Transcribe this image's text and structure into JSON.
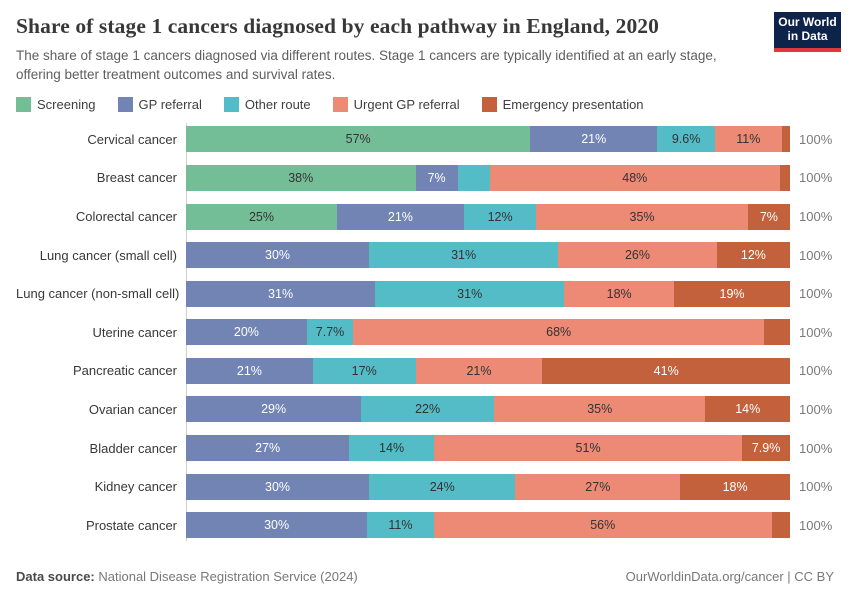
{
  "header": {
    "title": "Share of stage 1 cancers diagnosed by each pathway in England, 2020",
    "subtitle": "The share of stage 1 cancers diagnosed via different routes. Stage 1 cancers are typically identified at an early stage, offering better treatment outcomes and survival rates.",
    "logo": {
      "line1": "Our World",
      "line2": "in Data",
      "bg_color": "#0d234a",
      "accent_color": "#e0373c"
    }
  },
  "chart_data": {
    "type": "bar",
    "stacked": true,
    "orientation": "horizontal",
    "unit": "%",
    "axis_max": 100,
    "total_label": "100%",
    "series": [
      {
        "name": "Screening",
        "color": "#74be97",
        "label_color": "#333333"
      },
      {
        "name": "GP referral",
        "color": "#7284b3",
        "label_color": "#ffffff"
      },
      {
        "name": "Other route",
        "color": "#54bcc6",
        "label_color": "#333333"
      },
      {
        "name": "Urgent GP referral",
        "color": "#ec8a76",
        "label_color": "#333333"
      },
      {
        "name": "Emergency presentation",
        "color": "#c2613b",
        "label_color": "#ffffff"
      }
    ],
    "rows": [
      {
        "category": "Cervical cancer",
        "values": [
          57,
          21,
          9.6,
          11,
          1.4
        ],
        "labels": [
          "57%",
          "21%",
          "9.6%",
          "11%",
          ""
        ]
      },
      {
        "category": "Breast cancer",
        "values": [
          38,
          7,
          5.3,
          48,
          1.7
        ],
        "labels": [
          "38%",
          "7%",
          "",
          "48%",
          ""
        ]
      },
      {
        "category": "Colorectal cancer",
        "values": [
          25,
          21,
          12,
          35,
          7
        ],
        "labels": [
          "25%",
          "21%",
          "12%",
          "35%",
          "7%"
        ]
      },
      {
        "category": "Lung cancer (small cell)",
        "values": [
          0,
          30,
          31,
          26,
          12
        ],
        "labels": [
          "",
          "30%",
          "31%",
          "26%",
          "12%"
        ]
      },
      {
        "category": "Lung cancer (non-small cell)",
        "values": [
          0,
          31,
          31,
          18,
          19
        ],
        "labels": [
          "",
          "31%",
          "31%",
          "18%",
          "19%"
        ]
      },
      {
        "category": "Uterine cancer",
        "values": [
          0,
          20,
          7.7,
          68,
          4.3
        ],
        "labels": [
          "",
          "20%",
          "7.7%",
          "68%",
          ""
        ]
      },
      {
        "category": "Pancreatic cancer",
        "values": [
          0,
          21,
          17,
          21,
          41
        ],
        "labels": [
          "",
          "21%",
          "17%",
          "21%",
          "41%"
        ]
      },
      {
        "category": "Ovarian cancer",
        "values": [
          0,
          29,
          22,
          35,
          14
        ],
        "labels": [
          "",
          "29%",
          "22%",
          "35%",
          "14%"
        ]
      },
      {
        "category": "Bladder cancer",
        "values": [
          0,
          27,
          14,
          51,
          7.9
        ],
        "labels": [
          "",
          "27%",
          "14%",
          "51%",
          "7.9%"
        ]
      },
      {
        "category": "Kidney cancer",
        "values": [
          0,
          30,
          24,
          27,
          18
        ],
        "labels": [
          "",
          "30%",
          "24%",
          "27%",
          "18%"
        ]
      },
      {
        "category": "Prostate cancer",
        "values": [
          0,
          30,
          11,
          56,
          3
        ],
        "labels": [
          "",
          "30%",
          "11%",
          "56%",
          ""
        ]
      }
    ]
  },
  "footer": {
    "datasource_label": "Data source:",
    "datasource_value": " National Disease Registration Service (2024)",
    "right_text": "OurWorldinData.org/cancer | CC BY"
  }
}
